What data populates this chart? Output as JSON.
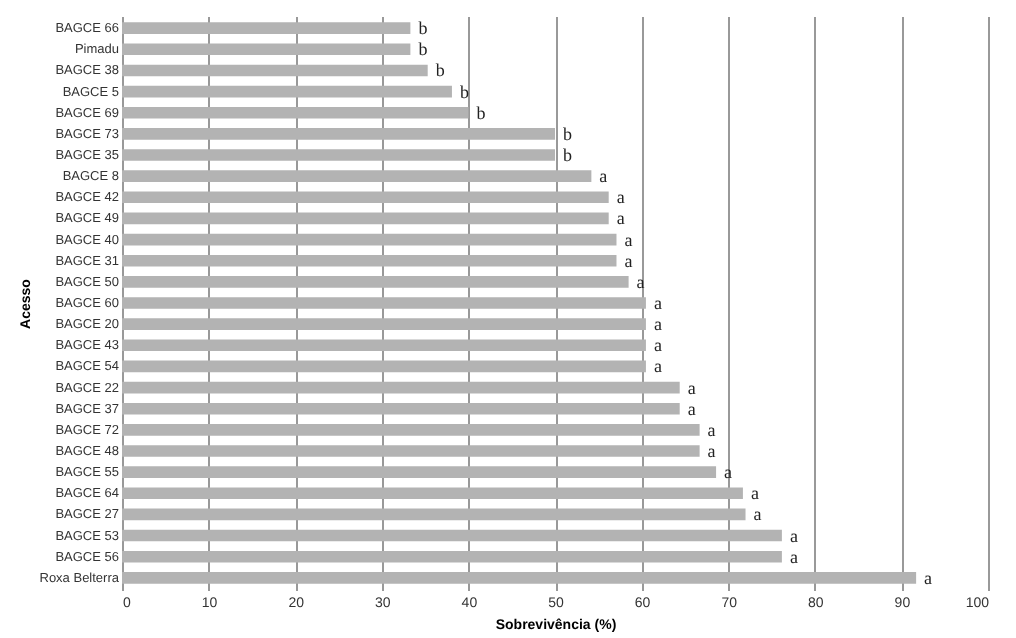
{
  "chart_data": {
    "type": "bar",
    "orientation": "horizontal",
    "xlabel": "Sobrevivência (%)",
    "ylabel": "Acesso",
    "categories": [
      "BAGCE 66",
      "Pimadu",
      "BAGCE 38",
      "BAGCE 5",
      "BAGCE 69",
      "BAGCE 73",
      "BAGCE 35",
      "BAGCE 8",
      "BAGCE 42",
      "BAGCE 49",
      "BAGCE 40",
      "BAGCE 31",
      "BAGCE 50",
      "BAGCE 60",
      "BAGCE 20",
      "BAGCE 43",
      "BAGCE 54",
      "BAGCE 22",
      "BAGCE 37",
      "BAGCE 72",
      "BAGCE 48",
      "BAGCE 55",
      "BAGCE 64",
      "BAGCE 27",
      "BAGCE 53",
      "BAGCE 56",
      "Roxa Belterra"
    ],
    "values": [
      33.3,
      33.3,
      35.3,
      38.1,
      40,
      50,
      50,
      54.2,
      56.2,
      56.2,
      57.1,
      57.1,
      58.5,
      60.5,
      60.5,
      60.5,
      60.5,
      64.4,
      64.4,
      66.7,
      66.7,
      68.6,
      71.7,
      72,
      76.2,
      76.2,
      91.7
    ],
    "value_labels": [
      "b",
      "b",
      "b",
      "b",
      "b",
      "b",
      "b",
      "a",
      "a",
      "a",
      "a",
      "a",
      "a",
      "a",
      "a",
      "a",
      "a",
      "a",
      "a",
      "a",
      "a",
      "a",
      "a",
      "a",
      "a",
      "a",
      "a"
    ],
    "color": "#b3b3b3",
    "xlim": [
      0,
      100
    ],
    "xticks": [
      0,
      10,
      20,
      30,
      40,
      50,
      60,
      70,
      80,
      90,
      100
    ],
    "grid": "x"
  }
}
